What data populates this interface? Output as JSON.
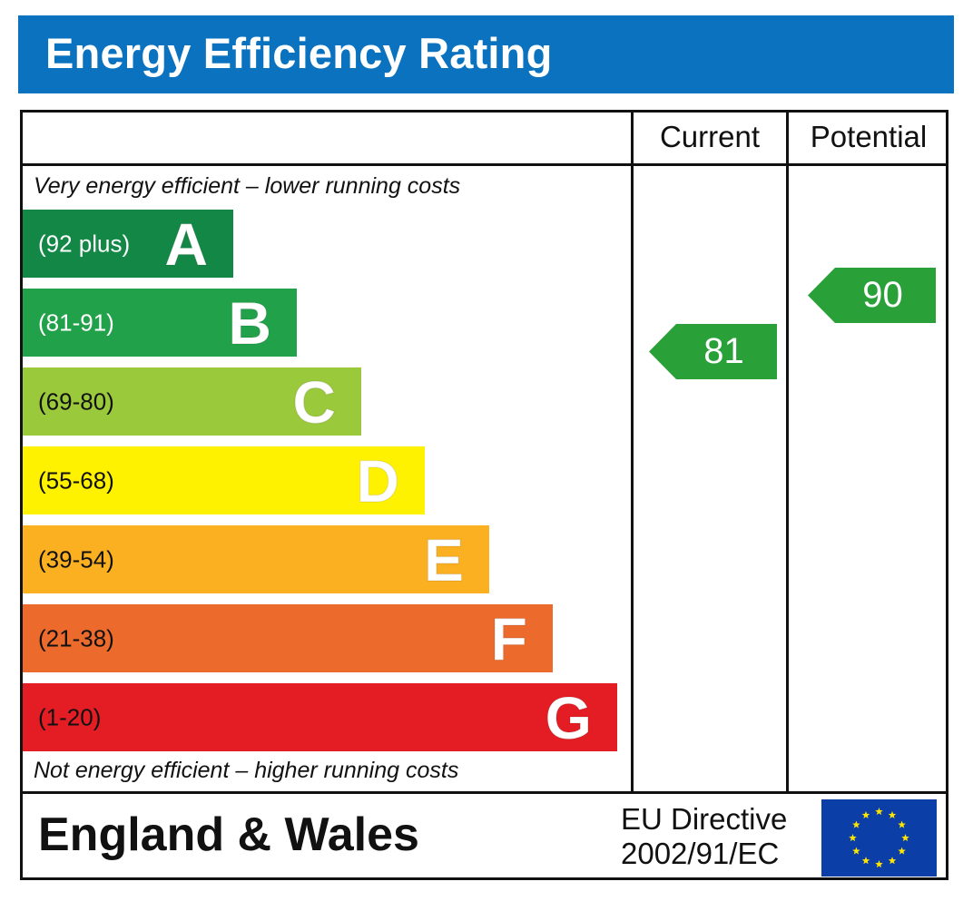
{
  "title": "Energy Efficiency Rating",
  "columns": {
    "current": "Current",
    "potential": "Potential"
  },
  "top_note": "Very energy efficient – lower running costs",
  "bottom_note": "Not energy efficient – higher running costs",
  "bands": [
    {
      "range": "(92 plus)",
      "letter": "A",
      "color": "#138846",
      "text": "dark"
    },
    {
      "range": "(81-91)",
      "letter": "B",
      "color": "#21a14a",
      "text": "dark"
    },
    {
      "range": "(69-80)",
      "letter": "C",
      "color": "#9bc93c",
      "text": "light"
    },
    {
      "range": "(55-68)",
      "letter": "D",
      "color": "#fff200",
      "text": "light"
    },
    {
      "range": "(39-54)",
      "letter": "E",
      "color": "#fbb021",
      "text": "light"
    },
    {
      "range": "(21-38)",
      "letter": "F",
      "color": "#ec6a2c",
      "text": "light"
    },
    {
      "range": "(1-20)",
      "letter": "G",
      "color": "#e31d23",
      "text": "light"
    }
  ],
  "current_rating": {
    "value": "81",
    "color": "#2aa038"
  },
  "potential_rating": {
    "value": "90",
    "color": "#2aa038"
  },
  "footer": {
    "region": "England & Wales",
    "directive_line1": "EU Directive",
    "directive_line2": "2002/91/EC",
    "flag_icon": "eu-flag-icon"
  }
}
